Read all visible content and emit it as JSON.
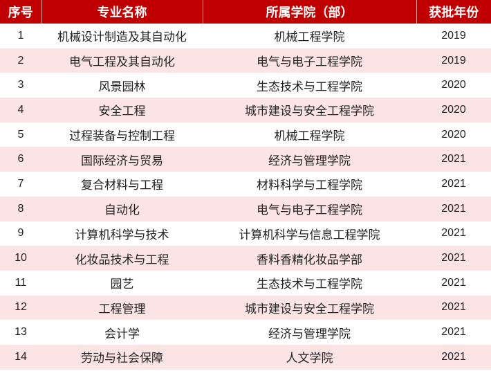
{
  "colors": {
    "header_bg": "#C00000",
    "header_text": "#FFFFFF",
    "alt_row_bg": "#FCE4E4"
  },
  "headers": [
    "序号",
    "专业名称",
    "所属学院（部）",
    "获批年份"
  ],
  "rows": [
    [
      "1",
      "机械设计制造及其自动化",
      "机械工程学院",
      "2019"
    ],
    [
      "2",
      "电气工程及其自动化",
      "电气与电子工程学院",
      "2019"
    ],
    [
      "3",
      "风景园林",
      "生态技术与工程学院",
      "2020"
    ],
    [
      "4",
      "安全工程",
      "城市建设与安全工程学院",
      "2020"
    ],
    [
      "5",
      "过程装备与控制工程",
      "机械工程学院",
      "2020"
    ],
    [
      "6",
      "国际经济与贸易",
      "经济与管理学院",
      "2021"
    ],
    [
      "7",
      "复合材料与工程",
      "材料科学与工程学院",
      "2021"
    ],
    [
      "8",
      "自动化",
      "电气与电子工程学院",
      "2021"
    ],
    [
      "9",
      "计算机科学与技术",
      "计算机科学与信息工程学院",
      "2021"
    ],
    [
      "10",
      "化妆品技术与工程",
      "香料香精化妆品学部",
      "2021"
    ],
    [
      "11",
      "园艺",
      "生态技术与工程学院",
      "2021"
    ],
    [
      "12",
      "工程管理",
      "城市建设与安全工程学院",
      "2021"
    ],
    [
      "13",
      "会计学",
      "经济与管理学院",
      "2021"
    ],
    [
      "14",
      "劳动与社会保障",
      "人文学院",
      "2021"
    ]
  ]
}
